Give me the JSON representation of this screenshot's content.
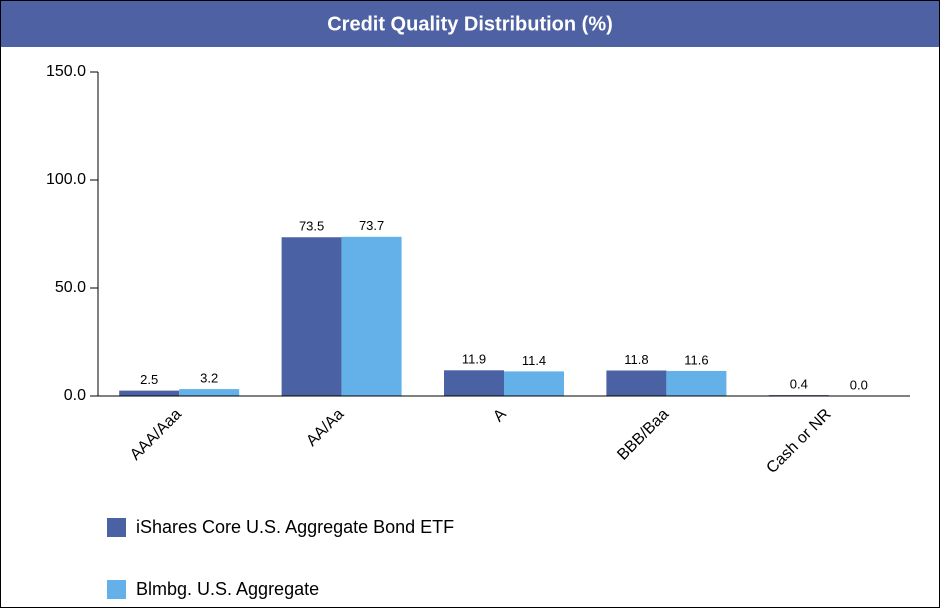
{
  "chart_data": {
    "type": "bar",
    "title": "Credit Quality Distribution (%)",
    "categories": [
      "AAA/Aaa",
      "AA/Aa",
      "A",
      "BBB/Baa",
      "Cash or NR"
    ],
    "series": [
      {
        "name": "iShares Core U.S. Aggregate Bond ETF",
        "color": "#4a62a3",
        "values": [
          2.5,
          73.5,
          11.9,
          11.8,
          0.4
        ],
        "value_labels": [
          "2.5",
          "73.5",
          "11.9",
          "11.8",
          "0.4"
        ]
      },
      {
        "name": "Blmbg. U.S. Aggregate",
        "color": "#63b1e8",
        "values": [
          3.2,
          73.7,
          11.4,
          11.6,
          0
        ],
        "value_labels": [
          "3.2",
          "73.7",
          "11.4",
          "11.6",
          "0.0"
        ]
      }
    ],
    "ylim": [
      0,
      150
    ],
    "yticks": [
      {
        "value": 0,
        "label": "0.0"
      },
      {
        "value": 50,
        "label": "50.0"
      },
      {
        "value": 100,
        "label": "100.0"
      },
      {
        "value": 150,
        "label": "150.0"
      }
    ]
  }
}
